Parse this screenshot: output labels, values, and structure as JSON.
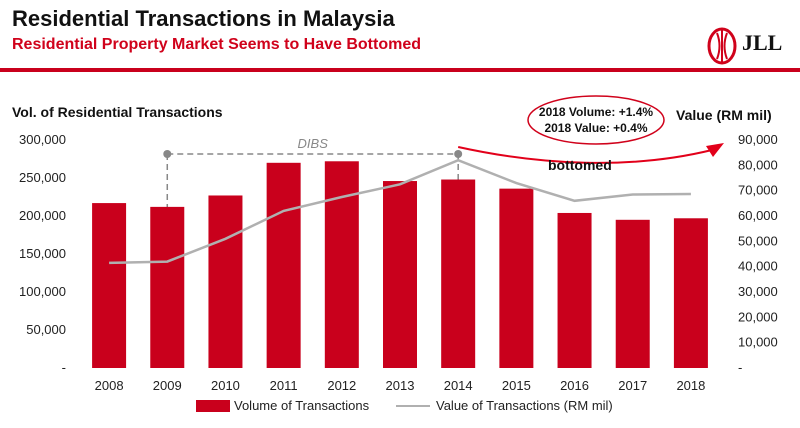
{
  "header": {
    "title": "Residential Transactions in Malaysia",
    "subtitle": "Residential Property Market Seems to Have Bottomed",
    "logo_text": "JLL"
  },
  "colors": {
    "accent": "#c9001c",
    "line": "#b0b0b0",
    "dibs": "#888888"
  },
  "annotations": {
    "callout_line1": "2018 Volume: +1.4%",
    "callout_line2": "2018 Value: +0.4%",
    "bottomed": "bottomed",
    "dibs": "DIBS"
  },
  "chart_data": {
    "type": "bar",
    "categories": [
      "2008",
      "2009",
      "2010",
      "2011",
      "2012",
      "2013",
      "2014",
      "2015",
      "2016",
      "2017",
      "2018"
    ],
    "series": [
      {
        "name": "Volume of Transactions",
        "type": "bar",
        "axis": "left",
        "values": [
          217000,
          212000,
          227000,
          270000,
          272000,
          246000,
          248000,
          236000,
          204000,
          195000,
          197000
        ]
      },
      {
        "name": "Value of Transactions (RM mil)",
        "type": "line",
        "axis": "right",
        "values": [
          41500,
          42000,
          51000,
          62000,
          67500,
          72500,
          82000,
          73000,
          66000,
          68500,
          68700
        ]
      }
    ],
    "ylabel_left": "Vol. of Residential Transactions",
    "ylabel_right": "Value (RM mil)",
    "ylim_left": [
      0,
      300000
    ],
    "ylim_right": [
      0,
      90000
    ],
    "yticks_left": [
      "-",
      "50,000",
      "100,000",
      "150,000",
      "200,000",
      "250,000",
      "300,000"
    ],
    "yticks_right": [
      "-",
      "10,000",
      "20,000",
      "30,000",
      "40,000",
      "50,000",
      "60,000",
      "70,000",
      "80,000",
      "90,000"
    ],
    "grid": false,
    "legend_position": "bottom",
    "dibs_period": [
      "2009",
      "2014"
    ]
  }
}
